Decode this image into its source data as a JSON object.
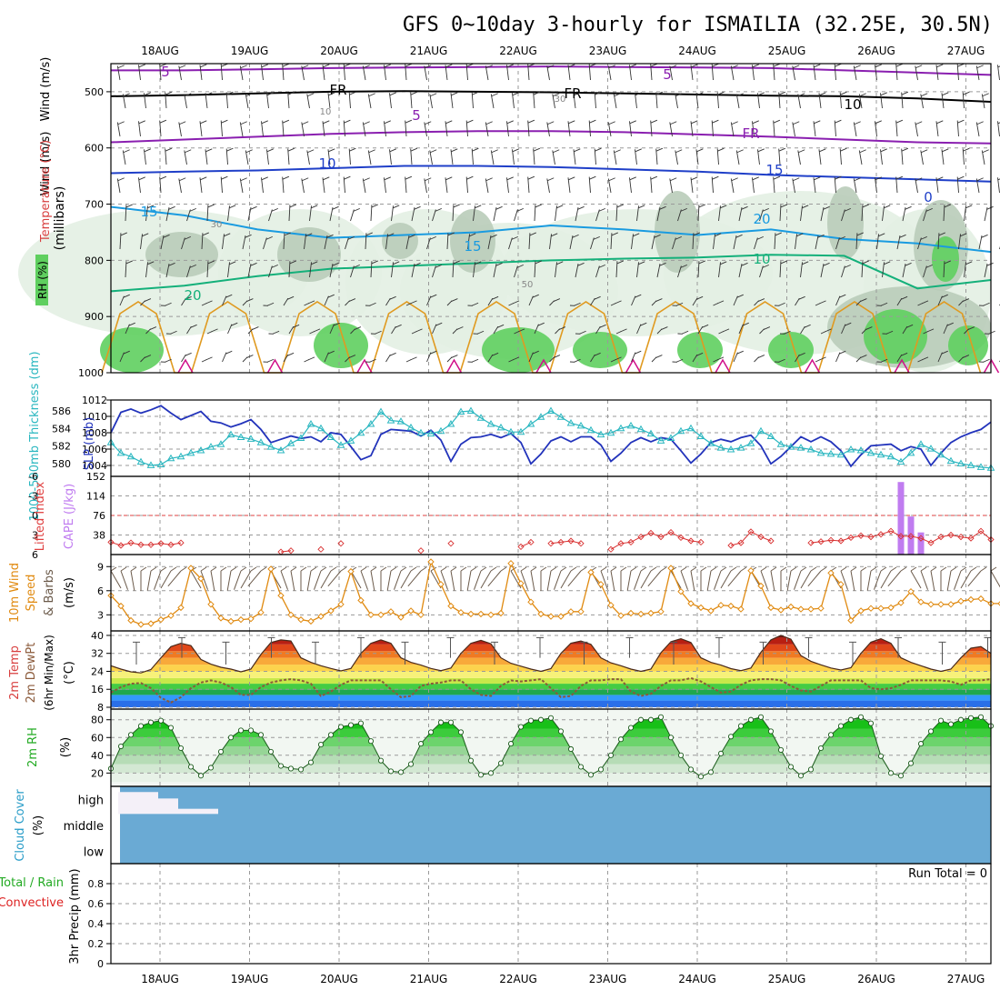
{
  "title": "GFS 0~10day 3-hourly for ISMAILIA (32.25E, 30.5N)",
  "dates": [
    "18AUG",
    "19AUG",
    "20AUG",
    "21AUG",
    "22AUG",
    "23AUG",
    "24AUG",
    "25AUG",
    "26AUG",
    "27AUG"
  ],
  "colors": {
    "grid": "#9a9a9a",
    "frame": "#000000",
    "temp_5": "#8a1fb0",
    "temp_fr": "#000000",
    "temp_10": "#1f3fc8",
    "temp_15": "#1a9be0",
    "temp_20": "#14b07a",
    "temp_25": "#e09a20",
    "rh_light": "#e3efe3",
    "rh_mid": "#b9ccb9",
    "rh_dark": "#5fcf5f",
    "slp": "#2233bb",
    "thickness": "#2ab7c0",
    "cape": "#c07cf0",
    "lifted": "#d83030",
    "wind_speed": "#e08a10",
    "wind_barb": "#6b5a4a",
    "dewpoint": "#8b5a3a",
    "rh2m_fill": "#22cc22",
    "cloud": "#6aaad4",
    "precip_total": "#22aa22",
    "precip_conv": "#dd2222"
  },
  "chart_data": [
    {
      "type": "contour",
      "name": "upper-air",
      "ylabel": "(millibars)",
      "legend_labels": {
        "wind": "Wind (m/s)",
        "temp": "Temperature (°C)",
        "rh": "RH (%)"
      },
      "ylim": [
        1000,
        450
      ],
      "ticks": [
        500,
        600,
        700,
        800,
        900,
        1000
      ],
      "contours": [
        {
          "label": "5",
          "key": "temp_5",
          "p": [
            462,
            462,
            460,
            458,
            457,
            456,
            455,
            456,
            457,
            458,
            462,
            466,
            470
          ]
        },
        {
          "label": "FR",
          "key": "temp_fr",
          "p": [
            508,
            506,
            503,
            500,
            499,
            500,
            501,
            503,
            505,
            507,
            508,
            512,
            518
          ]
        },
        {
          "label": "5",
          "key": "temp_5",
          "p": [
            590,
            585,
            580,
            575,
            572,
            570,
            570,
            572,
            576,
            580,
            585,
            590,
            592
          ]
        },
        {
          "label": "10",
          "key": "temp_10",
          "p": [
            645,
            642,
            640,
            636,
            632,
            632,
            634,
            638,
            642,
            648,
            652,
            656,
            660
          ]
        },
        {
          "label": "15",
          "key": "temp_15",
          "p": [
            705,
            720,
            745,
            760,
            755,
            750,
            738,
            745,
            755,
            745,
            762,
            770,
            785
          ]
        },
        {
          "label": "20",
          "key": "temp_20",
          "p": [
            855,
            845,
            828,
            815,
            810,
            805,
            800,
            797,
            795,
            790,
            792,
            850,
            835
          ]
        }
      ],
      "inline_labels": [
        "5",
        "5",
        "5",
        "FR",
        "FR",
        "FR",
        "10",
        "10",
        "15",
        "15",
        "15",
        "20",
        "20",
        "10",
        "10",
        "30",
        "30",
        "50",
        "0"
      ]
    },
    {
      "type": "line",
      "name": "slp-thickness",
      "ylabel_left": "1000-500mb Thickness (dm)",
      "ylabel_right": "SLP (mb)",
      "left_ticks": [
        580,
        582,
        584,
        586
      ],
      "right_ticks": [
        1004,
        1006,
        1008,
        1010,
        1012
      ],
      "slp": [
        1008.0,
        1010.5,
        1010.9,
        1010.4,
        1010.8,
        1011.3,
        1010.4,
        1009.6,
        1010.1,
        1010.6,
        1009.4,
        1009.2,
        1008.7,
        1009.1,
        1009.6,
        1008.4,
        1006.8,
        1007.2,
        1007.6,
        1007.3,
        1007.5,
        1006.9,
        1008.0,
        1007.8,
        1006.3,
        1004.7,
        1005.2,
        1007.8,
        1008.4,
        1008.3,
        1008.2,
        1007.6,
        1008.3,
        1007.1,
        1004.5,
        1006.6,
        1007.4,
        1007.5,
        1007.8,
        1007.4,
        1007.9,
        1006.8,
        1004.2,
        1005.4,
        1007.0,
        1007.5,
        1006.9,
        1007.5,
        1007.5,
        1006.5,
        1004.5,
        1005.5,
        1006.8,
        1007.4,
        1006.9,
        1007.4,
        1007.2,
        1005.8,
        1004.3,
        1005.4,
        1006.8,
        1007.2,
        1006.9,
        1007.4,
        1007.7,
        1006.4,
        1004.2,
        1005.1,
        1006.3,
        1007.5,
        1006.9,
        1007.5,
        1006.9,
        1005.8,
        1003.9,
        1005.3,
        1006.4,
        1006.5,
        1006.6,
        1005.8,
        1006.3,
        1006.0,
        1004.0,
        1005.5,
        1006.8,
        1007.5,
        1008.0,
        1008.4,
        1009.3
      ],
      "thickness": [
        582.4,
        581.2,
        580.8,
        580.2,
        579.8,
        579.9,
        580.6,
        580.8,
        581.2,
        581.5,
        581.9,
        582.2,
        583.3,
        583.0,
        582.8,
        582.4,
        581.9,
        581.5,
        582.3,
        582.9,
        584.5,
        584.0,
        583.0,
        582.1,
        582.6,
        583.5,
        584.5,
        585.9,
        584.9,
        584.8,
        584.1,
        583.5,
        583.4,
        583.7,
        584.5,
        585.9,
        586.0,
        585.2,
        584.5,
        584.1,
        583.6,
        583.6,
        584.5,
        585.3,
        586.0,
        585.3,
        584.6,
        584.3,
        583.8,
        583.3,
        583.5,
        584.0,
        584.3,
        583.9,
        583.4,
        582.6,
        582.9,
        583.7,
        584.0,
        583.1,
        582.3,
        581.8,
        581.6,
        581.8,
        582.3,
        583.7,
        583.1,
        582.2,
        581.9,
        581.8,
        581.6,
        581.2,
        581.1,
        581.0,
        581.6,
        581.5,
        581.2,
        581.0,
        580.8,
        580.2,
        581.2,
        582.2,
        581.7,
        581.0,
        580.3,
        580.0,
        579.8,
        579.6,
        579.5
      ]
    },
    {
      "type": "bar+line",
      "name": "cape-lifted",
      "ylabel_left": "Lifted Index",
      "ylabel_right": "CAPE (J/kg)",
      "li_ticks": [
        -6,
        -3,
        0,
        3,
        6
      ],
      "cape_ticks": [
        38,
        76,
        114,
        152
      ],
      "lifted_index": [
        4.1,
        4.6,
        4.2,
        4.5,
        4.5,
        4.3,
        4.5,
        4.2,
        null,
        null,
        null,
        null,
        null,
        null,
        null,
        null,
        null,
        5.6,
        5.4,
        null,
        null,
        5.2,
        null,
        4.3,
        null,
        null,
        null,
        null,
        null,
        null,
        null,
        5.4,
        null,
        null,
        4.3,
        null,
        null,
        null,
        null,
        null,
        null,
        4.8,
        4.1,
        null,
        4.3,
        4.1,
        3.9,
        4.3,
        null,
        null,
        5.2,
        4.3,
        4.1,
        3.3,
        2.7,
        3.3,
        2.6,
        3.4,
        3.9,
        4.1,
        null,
        null,
        4.6,
        4.2,
        2.5,
        3.3,
        3.9,
        null,
        null,
        null,
        4.2,
        4.0,
        3.8,
        3.9,
        3.4,
        3.1,
        3.3,
        2.9,
        2.4,
        3.2,
        3.2,
        3.5,
        4.2,
        3.3,
        3.0,
        3.3,
        3.5,
        2.4,
        3.7
      ],
      "cape_bars": [
        {
          "step": 79,
          "value": 141
        },
        {
          "step": 80,
          "value": 74
        },
        {
          "step": 81,
          "value": 43
        }
      ]
    },
    {
      "type": "line",
      "name": "wind10m",
      "ylabel": "10m Wind Speed & Barbs (m/s)",
      "ticks": [
        3,
        6,
        9
      ],
      "speed": [
        5.4,
        4.1,
        2.3,
        1.8,
        1.9,
        2.4,
        2.9,
        3.9,
        8.8,
        7.5,
        4.3,
        2.6,
        2.2,
        2.4,
        2.5,
        3.3,
        8.7,
        5.4,
        3.0,
        2.4,
        2.2,
        2.8,
        3.5,
        4.3,
        8.4,
        4.8,
        3.0,
        3.0,
        3.4,
        2.7,
        3.5,
        3.0,
        9.6,
        6.8,
        4.1,
        3.3,
        3.1,
        3.1,
        3.0,
        3.2,
        9.4,
        6.9,
        4.6,
        3.1,
        2.8,
        2.8,
        3.4,
        3.4,
        8.3,
        6.8,
        4.2,
        2.9,
        3.2,
        3.1,
        3.2,
        3.4,
        8.8,
        5.9,
        4.4,
        3.9,
        3.5,
        4.2,
        4.1,
        3.7,
        8.5,
        6.6,
        3.9,
        3.6,
        4.0,
        3.7,
        3.7,
        3.8,
        8.2,
        6.8,
        2.3,
        3.5,
        3.8,
        3.8,
        3.9,
        4.5,
        5.9,
        4.6,
        4.3,
        4.3,
        4.3,
        4.7,
        4.9,
        5.0,
        4.4,
        4.4
      ]
    },
    {
      "type": "area",
      "name": "temp2m",
      "ylabel": "2m Temp / 2m DewPt (6hr Min/Max) (°C)",
      "ticks": [
        8,
        16,
        24,
        32,
        40
      ],
      "temperature": [
        26.5,
        25.0,
        23.8,
        23.3,
        24.8,
        30.0,
        35.0,
        36.5,
        35.5,
        29.3,
        27.2,
        25.8,
        25.0,
        23.8,
        25.0,
        31.5,
        36.8,
        38.0,
        37.5,
        30.0,
        28.0,
        26.5,
        25.3,
        24.2,
        25.3,
        32.0,
        36.5,
        38.0,
        36.5,
        30.0,
        28.0,
        26.8,
        25.3,
        24.3,
        25.5,
        32.0,
        36.5,
        37.8,
        36.3,
        30.0,
        27.6,
        26.3,
        25.0,
        24.0,
        25.2,
        32.0,
        36.5,
        37.5,
        36.0,
        30.0,
        27.8,
        26.5,
        25.0,
        24.0,
        25.0,
        32.3,
        37.2,
        38.5,
        36.8,
        30.0,
        28.0,
        26.8,
        25.2,
        24.3,
        25.5,
        32.5,
        38.0,
        40.0,
        38.3,
        31.0,
        28.5,
        26.9,
        25.5,
        24.6,
        25.6,
        32.0,
        37.0,
        38.5,
        36.5,
        30.0,
        28.0,
        26.5,
        25.0,
        24.0,
        25.0,
        30.0,
        34.3,
        35.0,
        32.0
      ],
      "dewpoint": [
        14.5,
        17.0,
        18.5,
        18.8,
        16.5,
        12.2,
        10.1,
        12.5,
        16.5,
        19.0,
        20.0,
        19.0,
        17.0,
        13.5,
        13.5,
        17.0,
        19.0,
        20.0,
        20.5,
        20.0,
        18.5,
        13.0,
        15.0,
        18.0,
        20.0,
        20.0,
        20.0,
        20.0,
        16.0,
        12.5,
        13.0,
        17.5,
        18.5,
        19.0,
        20.0,
        20.0,
        16.0,
        13.5,
        13.0,
        17.5,
        20.0,
        19.5,
        20.0,
        20.5,
        16.5,
        12.5,
        13.0,
        17.5,
        20.0,
        20.0,
        20.5,
        20.5,
        15.0,
        13.0,
        14.0,
        17.5,
        20.0,
        20.0,
        21.0,
        19.5,
        17.0,
        14.5,
        15.0,
        18.0,
        20.0,
        20.5,
        20.5,
        20.0,
        17.5,
        15.5,
        15.0,
        17.5,
        20.0,
        20.0,
        20.0,
        20.0,
        16.5,
        16.0,
        16.5,
        18.0,
        20.0,
        20.0,
        20.0,
        20.0,
        19.5,
        18.0,
        20.0,
        20.0,
        20.5
      ]
    },
    {
      "type": "area",
      "name": "rh2m",
      "ylabel": "2m RH (%)",
      "ticks": [
        20,
        40,
        60,
        80
      ],
      "rh": [
        25,
        50,
        63,
        73,
        77,
        79,
        71,
        48,
        27,
        17,
        26,
        44,
        60,
        68,
        68,
        63,
        44,
        28,
        25,
        24,
        32,
        52,
        63,
        72,
        74,
        76,
        56,
        34,
        22,
        21,
        30,
        53,
        66,
        77,
        77,
        66,
        34,
        18,
        20,
        31,
        53,
        72,
        79,
        80,
        82,
        67,
        47,
        27,
        18,
        24,
        40,
        58,
        71,
        80,
        80,
        83,
        60,
        40,
        24,
        16,
        21,
        42,
        61,
        73,
        80,
        83,
        67,
        46,
        27,
        17,
        24,
        48,
        63,
        73,
        80,
        83,
        76,
        39,
        20,
        17,
        31,
        53,
        67,
        79,
        75,
        80,
        82,
        83,
        73
      ]
    },
    {
      "type": "bar",
      "name": "cloud-cover",
      "ylabel": "Cloud Cover (%)",
      "levels": [
        "high",
        "middle",
        "low"
      ],
      "high_cloud": [
        {
          "from_step": 0,
          "to_step": 3,
          "value": 85
        },
        {
          "from_step": 4,
          "to_step": 5,
          "value": 60
        },
        {
          "from_step": 6,
          "to_step": 9,
          "value": 20
        }
      ]
    },
    {
      "type": "bar",
      "name": "precip",
      "ylabel": "3hr Precip (mm)",
      "legend_total": "Total / Rain",
      "legend_conv": "Convective",
      "run_total": "Run Total = 0",
      "ticks": [
        0,
        0.2,
        0.4,
        0.6,
        0.8
      ],
      "ylim": [
        0,
        1
      ],
      "values": []
    }
  ]
}
